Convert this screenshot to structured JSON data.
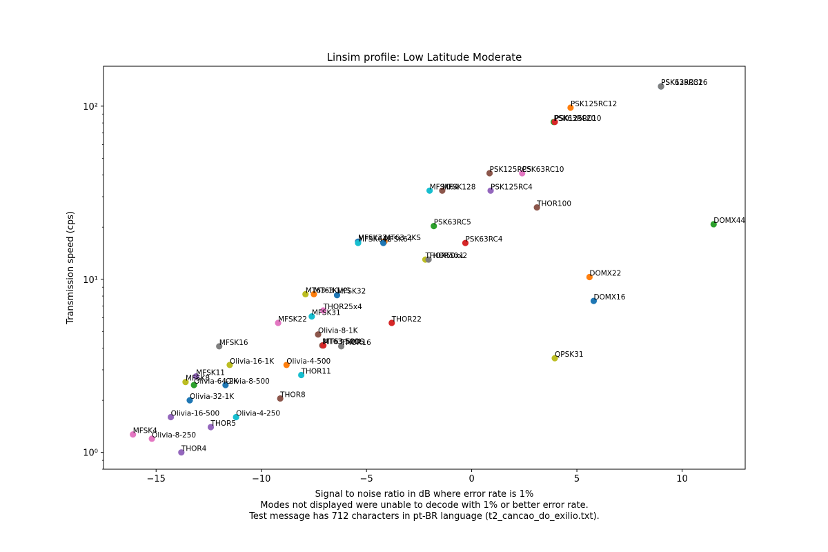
{
  "chart_data": {
    "type": "scatter",
    "title": "Linsim profile: Low Latitude Moderate",
    "xlabel_lines": [
      "Signal to noise ratio in dB where error rate is 1%",
      "Modes not displayed were unable to decode with 1% or better error rate.",
      "Test message has 712 characters in pt-BR language (t2_cancao_do_exilio.txt)."
    ],
    "ylabel": "Transmission speed (cps)",
    "xlim": [
      -17.5,
      13.0
    ],
    "ylim": [
      0.8,
      170
    ],
    "yscale": "log",
    "xticks": [
      -15,
      -10,
      -5,
      0,
      5,
      10
    ],
    "xtick_labels": [
      "−15",
      "−10",
      "−5",
      "0",
      "5",
      "10"
    ],
    "yticks": [
      1,
      10,
      100
    ],
    "ytick_labels": [
      "10⁰",
      "10¹",
      "10²"
    ],
    "grid": false,
    "points": [
      {
        "label": "PSK63RC32",
        "x": 9.0,
        "y": 130,
        "color": "#1f77b4"
      },
      {
        "label": "PSK125RC16",
        "x": 9.0,
        "y": 130,
        "color": "#7f7f7f"
      },
      {
        "label": "PSK125RC12",
        "x": 4.7,
        "y": 98,
        "color": "#ff7f0e"
      },
      {
        "label": "PSK63RC20",
        "x": 3.9,
        "y": 81,
        "color": "#2ca02c"
      },
      {
        "label": "PSK125RC10",
        "x": 3.95,
        "y": 81,
        "color": "#d62728"
      },
      {
        "label": "PSK125RC5",
        "x": 0.85,
        "y": 41,
        "color": "#8c564b"
      },
      {
        "label": "PSK63RC10",
        "x": 2.4,
        "y": 41,
        "color": "#e377c2"
      },
      {
        "label": "MFSK64",
        "x": -2.0,
        "y": 32.5,
        "color": "#17becf"
      },
      {
        "label": "MFSK128",
        "x": -1.4,
        "y": 32.5,
        "color": "#8c564b"
      },
      {
        "label": "PSK125RC4",
        "x": 0.9,
        "y": 32.5,
        "color": "#9467bd"
      },
      {
        "label": "THOR100",
        "x": 3.1,
        "y": 26,
        "color": "#8c564b"
      },
      {
        "label": "PSK63RC5",
        "x": -1.8,
        "y": 20.3,
        "color": "#2ca02c"
      },
      {
        "label": "DOMX44",
        "x": 11.5,
        "y": 20.8,
        "color": "#2ca02c"
      },
      {
        "label": "MFSK32",
        "x": -5.4,
        "y": 16.5,
        "color": "#1f77b4"
      },
      {
        "label": "MT63-2KS",
        "x": -4.15,
        "y": 16.5,
        "color": "#ff7f0e"
      },
      {
        "label": "MFSK64L",
        "x": -5.4,
        "y": 16.2,
        "color": "#17becf"
      },
      {
        "label": "MFSK64",
        "x": -4.2,
        "y": 16.2,
        "color": "#1f77b4"
      },
      {
        "label": "PSK63RC4",
        "x": -0.3,
        "y": 16.2,
        "color": "#d62728"
      },
      {
        "label": "THOR50x1",
        "x": -2.2,
        "y": 13,
        "color": "#bcbd22"
      },
      {
        "label": "THOR50x2",
        "x": -2.05,
        "y": 13,
        "color": "#7f7f7f"
      },
      {
        "label": "DOMX22",
        "x": 5.6,
        "y": 10.3,
        "color": "#ff7f0e"
      },
      {
        "label": "MT63-1KL",
        "x": -7.9,
        "y": 8.2,
        "color": "#bcbd22"
      },
      {
        "label": "MT63-1KS",
        "x": -7.5,
        "y": 8.2,
        "color": "#ff7f0e"
      },
      {
        "label": "MFSK32",
        "x": -6.4,
        "y": 8.1,
        "color": "#1f77b4"
      },
      {
        "label": "DOMX16",
        "x": 5.8,
        "y": 7.5,
        "color": "#1f77b4"
      },
      {
        "label": "THOR25x4",
        "x": -7.05,
        "y": 6.6,
        "color": "#e377c2"
      },
      {
        "label": "MFSK31",
        "x": -7.6,
        "y": 6.1,
        "color": "#17becf"
      },
      {
        "label": "MFSK22",
        "x": -9.2,
        "y": 5.6,
        "color": "#e377c2"
      },
      {
        "label": "THOR22",
        "x": -3.8,
        "y": 5.6,
        "color": "#d62728"
      },
      {
        "label": "Olivia-8-1K",
        "x": -7.3,
        "y": 4.8,
        "color": "#8c564b"
      },
      {
        "label": "MFSK16",
        "x": -12.0,
        "y": 4.1,
        "color": "#7f7f7f"
      },
      {
        "label": "MT63-500L",
        "x": -7.1,
        "y": 4.15,
        "color": "#8c564b"
      },
      {
        "label": "MT63-500S",
        "x": -7.05,
        "y": 4.15,
        "color": "#d62728"
      },
      {
        "label": "THOR16",
        "x": -6.2,
        "y": 4.1,
        "color": "#7f7f7f"
      },
      {
        "label": "QPSK31",
        "x": 3.95,
        "y": 3.5,
        "color": "#bcbd22"
      },
      {
        "label": "Olivia-16-1K",
        "x": -11.5,
        "y": 3.2,
        "color": "#bcbd22"
      },
      {
        "label": "Olivia-4-500",
        "x": -8.8,
        "y": 3.2,
        "color": "#ff7f0e"
      },
      {
        "label": "THOR11",
        "x": -8.1,
        "y": 2.8,
        "color": "#17becf"
      },
      {
        "label": "MFSK11",
        "x": -13.1,
        "y": 2.75,
        "color": "#9467bd"
      },
      {
        "label": "MFSK8",
        "x": -13.6,
        "y": 2.55,
        "color": "#bcbd22"
      },
      {
        "label": "Olivia-64-2K",
        "x": -13.2,
        "y": 2.45,
        "color": "#2ca02c"
      },
      {
        "label": "Olivia-8-500",
        "x": -11.7,
        "y": 2.45,
        "color": "#1f77b4"
      },
      {
        "label": "Olivia-32-1K",
        "x": -13.4,
        "y": 2.0,
        "color": "#1f77b4"
      },
      {
        "label": "THOR8",
        "x": -9.1,
        "y": 2.05,
        "color": "#8c564b"
      },
      {
        "label": "Olivia-16-500",
        "x": -14.3,
        "y": 1.6,
        "color": "#9467bd"
      },
      {
        "label": "Olivia-4-250",
        "x": -11.2,
        "y": 1.6,
        "color": "#17becf"
      },
      {
        "label": "THOR5",
        "x": -12.4,
        "y": 1.4,
        "color": "#9467bd"
      },
      {
        "label": "MFSK4",
        "x": -16.1,
        "y": 1.27,
        "color": "#e377c2"
      },
      {
        "label": "Olivia-8-250",
        "x": -15.2,
        "y": 1.2,
        "color": "#e377c2"
      },
      {
        "label": "THOR4",
        "x": -13.8,
        "y": 1.0,
        "color": "#9467bd"
      }
    ]
  }
}
